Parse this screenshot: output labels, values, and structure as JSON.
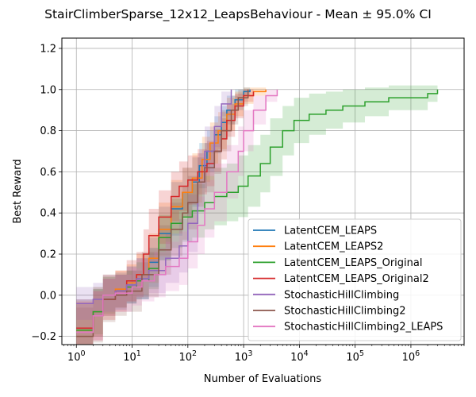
{
  "chart_data": {
    "type": "line",
    "title": "StairClimberSparse_12x12_LeapsBehaviour - Mean ± 95.0% CI",
    "xlabel": "Number of Evaluations",
    "ylabel": "Best Reward",
    "xscale": "log",
    "xlim": [
      0.55,
      9000000
    ],
    "ylim": [
      -0.24,
      1.25
    ],
    "xticks": [
      {
        "value": 1,
        "base": "10",
        "exp": "0"
      },
      {
        "value": 10,
        "base": "10",
        "exp": "1"
      },
      {
        "value": 100,
        "base": "10",
        "exp": "2"
      },
      {
        "value": 1000,
        "base": "10",
        "exp": "3"
      },
      {
        "value": 10000,
        "base": "10",
        "exp": "4"
      },
      {
        "value": 100000,
        "base": "10",
        "exp": "5"
      },
      {
        "value": 1000000,
        "base": "10",
        "exp": "6"
      }
    ],
    "yticks": [
      {
        "value": -0.2,
        "label": "−0.2"
      },
      {
        "value": 0.0,
        "label": "0.0"
      },
      {
        "value": 0.2,
        "label": "0.2"
      },
      {
        "value": 0.4,
        "label": "0.4"
      },
      {
        "value": 0.6,
        "label": "0.6"
      },
      {
        "value": 0.8,
        "label": "0.8"
      },
      {
        "value": 1.0,
        "label": "1.0"
      },
      {
        "value": 1.2,
        "label": "1.2"
      }
    ],
    "grid": true,
    "legend_position": "lower-right",
    "series": [
      {
        "name": "LatentCEM_LEAPS",
        "color": "#1f77b4",
        "points": [
          [
            1,
            -0.16
          ],
          [
            2,
            -0.08
          ],
          [
            3,
            0.0
          ],
          [
            5,
            0.02
          ],
          [
            8,
            0.05
          ],
          [
            12,
            0.08
          ],
          [
            20,
            0.16
          ],
          [
            30,
            0.3
          ],
          [
            50,
            0.42
          ],
          [
            80,
            0.5
          ],
          [
            120,
            0.55
          ],
          [
            160,
            0.63
          ],
          [
            220,
            0.7
          ],
          [
            300,
            0.78
          ],
          [
            400,
            0.84
          ],
          [
            500,
            0.9
          ],
          [
            700,
            0.95
          ],
          [
            1000,
            0.99
          ],
          [
            1300,
            1.0
          ]
        ],
        "ci": [
          0.14,
          0.12,
          0.1,
          0.09,
          0.09,
          0.1,
          0.12,
          0.13,
          0.13,
          0.12,
          0.12,
          0.11,
          0.1,
          0.09,
          0.08,
          0.07,
          0.05,
          0.02,
          0.01
        ]
      },
      {
        "name": "LatentCEM_LEAPS2",
        "color": "#ff7f0e",
        "points": [
          [
            1,
            -0.17
          ],
          [
            2,
            -0.08
          ],
          [
            3,
            0.0
          ],
          [
            5,
            0.03
          ],
          [
            8,
            0.06
          ],
          [
            12,
            0.1
          ],
          [
            20,
            0.18
          ],
          [
            30,
            0.32
          ],
          [
            50,
            0.43
          ],
          [
            80,
            0.5
          ],
          [
            120,
            0.57
          ],
          [
            180,
            0.66
          ],
          [
            250,
            0.74
          ],
          [
            350,
            0.8
          ],
          [
            500,
            0.88
          ],
          [
            700,
            0.93
          ],
          [
            1000,
            0.97
          ],
          [
            1500,
            0.99
          ],
          [
            2500,
            1.0
          ]
        ],
        "ci": [
          0.14,
          0.12,
          0.1,
          0.09,
          0.09,
          0.1,
          0.12,
          0.13,
          0.13,
          0.12,
          0.12,
          0.11,
          0.1,
          0.09,
          0.08,
          0.06,
          0.04,
          0.02,
          0.01
        ]
      },
      {
        "name": "LatentCEM_LEAPS_Original",
        "color": "#2ca02c",
        "points": [
          [
            1,
            -0.17
          ],
          [
            2,
            -0.08
          ],
          [
            3,
            0.0
          ],
          [
            5,
            0.02
          ],
          [
            8,
            0.04
          ],
          [
            12,
            0.07
          ],
          [
            20,
            0.13
          ],
          [
            30,
            0.28
          ],
          [
            50,
            0.35
          ],
          [
            80,
            0.38
          ],
          [
            120,
            0.41
          ],
          [
            200,
            0.45
          ],
          [
            300,
            0.48
          ],
          [
            500,
            0.5
          ],
          [
            800,
            0.53
          ],
          [
            1200,
            0.58
          ],
          [
            2000,
            0.64
          ],
          [
            3000,
            0.72
          ],
          [
            5000,
            0.8
          ],
          [
            8000,
            0.85
          ],
          [
            15000,
            0.88
          ],
          [
            30000,
            0.9
          ],
          [
            60000,
            0.92
          ],
          [
            150000,
            0.94
          ],
          [
            400000,
            0.96
          ],
          [
            1000000,
            0.96
          ],
          [
            2000000,
            0.98
          ],
          [
            3000000,
            1.0
          ]
        ],
        "ci": [
          0.13,
          0.11,
          0.09,
          0.08,
          0.08,
          0.09,
          0.1,
          0.11,
          0.12,
          0.12,
          0.13,
          0.13,
          0.14,
          0.14,
          0.15,
          0.15,
          0.14,
          0.14,
          0.12,
          0.11,
          0.1,
          0.09,
          0.08,
          0.07,
          0.06,
          0.06,
          0.04,
          0.02
        ]
      },
      {
        "name": "LatentCEM_LEAPS_Original2",
        "color": "#d62728",
        "points": [
          [
            1,
            -0.16
          ],
          [
            2,
            -0.1
          ],
          [
            3,
            -0.02
          ],
          [
            5,
            0.02
          ],
          [
            8,
            0.07
          ],
          [
            12,
            0.1
          ],
          [
            16,
            0.2
          ],
          [
            20,
            0.29
          ],
          [
            30,
            0.38
          ],
          [
            50,
            0.48
          ],
          [
            70,
            0.53
          ],
          [
            100,
            0.56
          ],
          [
            150,
            0.6
          ],
          [
            220,
            0.64
          ],
          [
            300,
            0.7
          ],
          [
            400,
            0.76
          ],
          [
            500,
            0.85
          ],
          [
            700,
            0.92
          ],
          [
            1000,
            0.97
          ],
          [
            1500,
            0.99
          ]
        ],
        "ci": [
          0.14,
          0.12,
          0.1,
          0.1,
          0.1,
          0.11,
          0.12,
          0.13,
          0.13,
          0.12,
          0.12,
          0.12,
          0.11,
          0.11,
          0.1,
          0.1,
          0.08,
          0.06,
          0.03,
          0.01
        ]
      },
      {
        "name": "StochasticHillClimbing",
        "color": "#9467bd",
        "points": [
          [
            1,
            -0.04
          ],
          [
            2,
            -0.02
          ],
          [
            3,
            0.0
          ],
          [
            5,
            0.02
          ],
          [
            8,
            0.05
          ],
          [
            12,
            0.08
          ],
          [
            20,
            0.12
          ],
          [
            40,
            0.18
          ],
          [
            70,
            0.24
          ],
          [
            100,
            0.35
          ],
          [
            150,
            0.55
          ],
          [
            200,
            0.7
          ],
          [
            300,
            0.82
          ],
          [
            400,
            0.93
          ],
          [
            600,
            1.0
          ]
        ],
        "ci": [
          0.08,
          0.08,
          0.08,
          0.08,
          0.09,
          0.1,
          0.11,
          0.12,
          0.13,
          0.14,
          0.14,
          0.12,
          0.1,
          0.06,
          0.01
        ]
      },
      {
        "name": "StochasticHillClimbing2",
        "color": "#8c564b",
        "points": [
          [
            1,
            -0.2
          ],
          [
            2,
            -0.1
          ],
          [
            3,
            -0.02
          ],
          [
            5,
            0.0
          ],
          [
            8,
            0.02
          ],
          [
            15,
            0.1
          ],
          [
            30,
            0.22
          ],
          [
            50,
            0.32
          ],
          [
            80,
            0.4
          ],
          [
            100,
            0.45
          ],
          [
            150,
            0.55
          ],
          [
            200,
            0.62
          ],
          [
            300,
            0.7
          ],
          [
            400,
            0.8
          ],
          [
            600,
            0.9
          ],
          [
            800,
            0.96
          ],
          [
            1200,
            1.0
          ]
        ],
        "ci": [
          0.14,
          0.13,
          0.11,
          0.1,
          0.1,
          0.11,
          0.12,
          0.13,
          0.13,
          0.13,
          0.12,
          0.12,
          0.11,
          0.1,
          0.07,
          0.04,
          0.01
        ]
      },
      {
        "name": "StochasticHillClimbing2_LEAPS",
        "color": "#e377c2",
        "points": [
          [
            1,
            -0.18
          ],
          [
            2,
            -0.1
          ],
          [
            3,
            0.0
          ],
          [
            5,
            0.01
          ],
          [
            10,
            0.04
          ],
          [
            15,
            0.07
          ],
          [
            25,
            0.1
          ],
          [
            40,
            0.14
          ],
          [
            70,
            0.18
          ],
          [
            100,
            0.26
          ],
          [
            150,
            0.34
          ],
          [
            200,
            0.42
          ],
          [
            300,
            0.5
          ],
          [
            500,
            0.6
          ],
          [
            800,
            0.7
          ],
          [
            1000,
            0.8
          ],
          [
            1500,
            0.9
          ],
          [
            2500,
            0.97
          ],
          [
            4000,
            1.0
          ]
        ],
        "ci": [
          0.14,
          0.12,
          0.1,
          0.09,
          0.09,
          0.1,
          0.11,
          0.12,
          0.13,
          0.13,
          0.14,
          0.14,
          0.14,
          0.13,
          0.12,
          0.1,
          0.07,
          0.03,
          0.01
        ]
      }
    ]
  }
}
